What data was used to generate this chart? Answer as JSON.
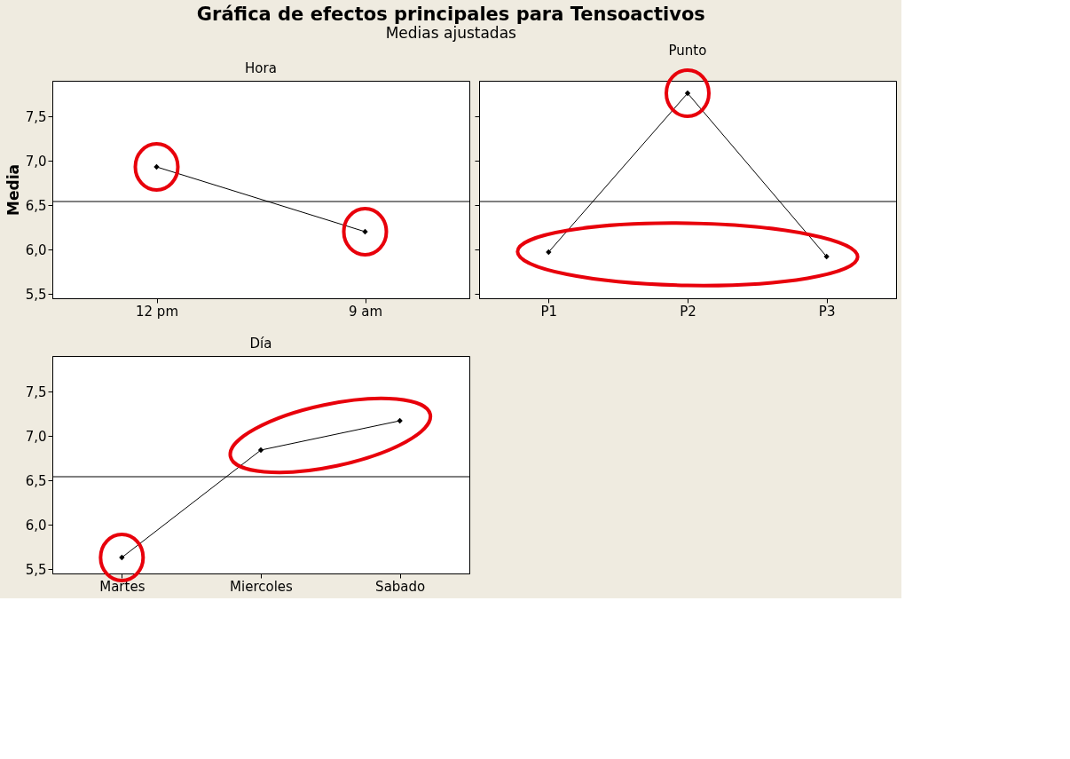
{
  "chart_data": [
    {
      "type": "line",
      "title": "Gráfica de efectos principales para Tensoactivos",
      "subtitle": "Medias ajustadas",
      "ylabel": "Media",
      "annotations": [
        "Hora"
      ],
      "categories": [
        "12 pm",
        "9 am"
      ],
      "series": [
        {
          "color": "#000000",
          "values": [
            6.93,
            6.2
          ]
        }
      ],
      "ylim": [
        5.45,
        7.9
      ],
      "yticks": [
        {
          "value": 5.5,
          "label": "5,5"
        },
        {
          "value": 6.0,
          "label": "6,0"
        },
        {
          "value": 6.5,
          "label": "6,5"
        },
        {
          "value": 7.0,
          "label": "7,0"
        },
        {
          "value": 7.5,
          "label": "7,5"
        }
      ],
      "ref_lines": [
        {
          "axis": "y",
          "value": 6.54,
          "color": "#000000"
        }
      ],
      "marker": "diamond"
    },
    {
      "type": "line",
      "annotations": [
        "Punto"
      ],
      "categories": [
        "P1",
        "P2",
        "P3"
      ],
      "series": [
        {
          "color": "#000000",
          "values": [
            5.97,
            7.76,
            5.92
          ]
        }
      ],
      "ylim": [
        5.45,
        7.9
      ],
      "yticks": [
        {
          "value": 5.5,
          "label": null
        },
        {
          "value": 6.0,
          "label": null
        },
        {
          "value": 6.5,
          "label": null
        },
        {
          "value": 7.0,
          "label": null
        },
        {
          "value": 7.5,
          "label": null
        }
      ],
      "tick_labels": "x",
      "ref_lines": [
        {
          "axis": "y",
          "value": 6.54,
          "color": "#000000"
        }
      ],
      "marker": "diamond"
    },
    {
      "type": "line",
      "annotations": [
        "Día"
      ],
      "categories": [
        "Martes",
        "Miercoles",
        "Sabado"
      ],
      "series": [
        {
          "color": "#000000",
          "values": [
            5.63,
            6.84,
            7.17
          ]
        }
      ],
      "ylim": [
        5.45,
        7.9
      ],
      "yticks": [
        {
          "value": 5.5,
          "label": "5,5"
        },
        {
          "value": 6.0,
          "label": "6,0"
        },
        {
          "value": 6.5,
          "label": "6,5"
        },
        {
          "value": 7.0,
          "label": "7,0"
        },
        {
          "value": 7.5,
          "label": "7,5"
        }
      ],
      "ref_lines": [
        {
          "axis": "y",
          "value": 6.54,
          "color": "#000000"
        }
      ],
      "marker": "diamond"
    }
  ]
}
